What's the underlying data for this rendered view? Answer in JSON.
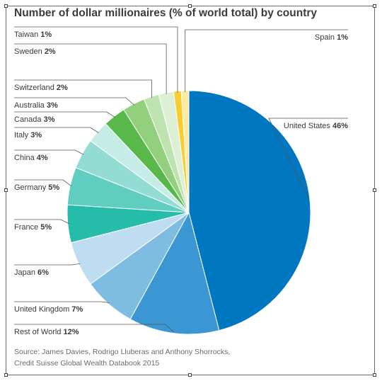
{
  "chart_data": {
    "type": "pie",
    "title": "Number of dollar millionaires (% of world total) by country",
    "unit": "%",
    "slices": [
      {
        "label": "United States",
        "value": 46,
        "display": "46%",
        "color": "#0077C1"
      },
      {
        "label": "Rest of World",
        "value": 12,
        "display": "12%",
        "color": "#3A97D3"
      },
      {
        "label": "United Kingdom",
        "value": 7,
        "display": "7%",
        "color": "#7FBCE2"
      },
      {
        "label": "Japan",
        "value": 6,
        "display": "6%",
        "color": "#BEDDF1"
      },
      {
        "label": "France",
        "value": 5,
        "display": "5%",
        "color": "#25BCAA"
      },
      {
        "label": "Germany",
        "value": 5,
        "display": "5%",
        "color": "#5FCDC0"
      },
      {
        "label": "China",
        "value": 4,
        "display": "4%",
        "color": "#92DCD3"
      },
      {
        "label": "Italy",
        "value": 3,
        "display": "3%",
        "color": "#C6ECE7"
      },
      {
        "label": "Canada",
        "value": 3,
        "display": "3%",
        "color": "#58B94A"
      },
      {
        "label": "Australia",
        "value": 3,
        "display": "3%",
        "color": "#93D07E"
      },
      {
        "label": "Switzerland",
        "value": 2,
        "display": "2%",
        "color": "#BDE3AF"
      },
      {
        "label": "Sweden",
        "value": 2,
        "display": "2%",
        "color": "#DDF0D5"
      },
      {
        "label": "Taiwan",
        "value": 1,
        "display": "1%",
        "color": "#F8CD2F"
      },
      {
        "label": "Spain",
        "value": 1,
        "display": "1%",
        "color": "#FEEAA0"
      }
    ]
  },
  "source": {
    "line1": "Source: James Davies, Rodrigo Lluberas and Anthony Shorrocks,",
    "line2": "Credit Suisse Global Wealth Databook 2015"
  }
}
